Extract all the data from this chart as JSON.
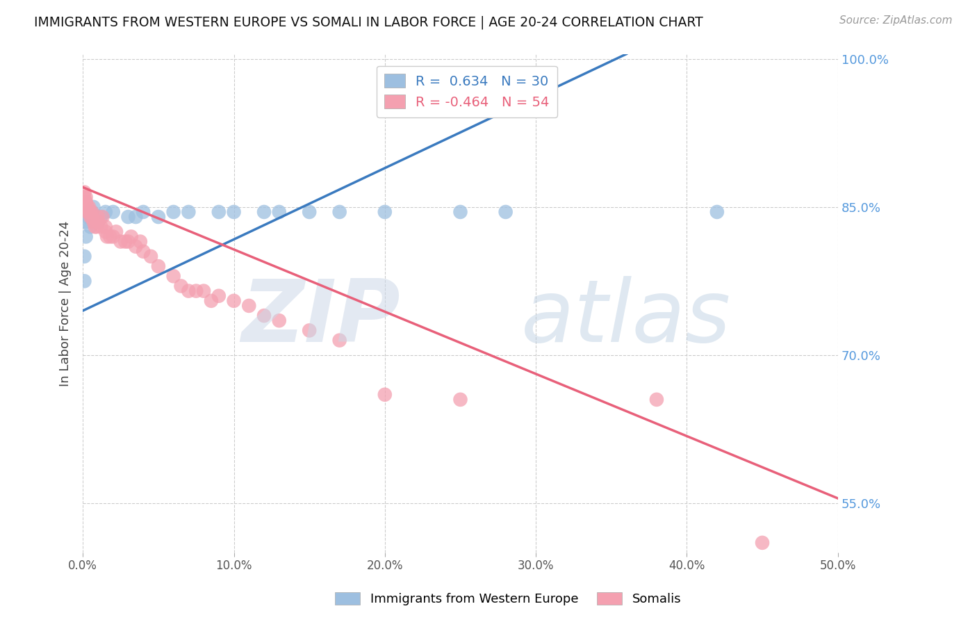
{
  "title": "IMMIGRANTS FROM WESTERN EUROPE VS SOMALI IN LABOR FORCE | AGE 20-24 CORRELATION CHART",
  "source": "Source: ZipAtlas.com",
  "ylabel": "In Labor Force | Age 20-24",
  "r_blue": 0.634,
  "n_blue": 30,
  "r_pink": -0.464,
  "n_pink": 54,
  "legend_blue": "Immigrants from Western Europe",
  "legend_pink": "Somalis",
  "xlim": [
    0.0,
    0.5
  ],
  "ylim": [
    0.5,
    1.005
  ],
  "yticks": [
    0.55,
    0.7,
    0.85,
    1.0
  ],
  "ytick_labels": [
    "55.0%",
    "70.0%",
    "85.0%",
    "100.0%"
  ],
  "xticks": [
    0.0,
    0.1,
    0.2,
    0.3,
    0.4,
    0.5
  ],
  "xtick_labels": [
    "0.0%",
    "10.0%",
    "20.0%",
    "30.0%",
    "40.0%",
    "50.0%"
  ],
  "blue_color": "#9dbfe0",
  "pink_color": "#f4a0b0",
  "blue_line_color": "#3a7abf",
  "pink_line_color": "#e8607a",
  "watermark_zip": "ZIP",
  "watermark_atlas": "atlas",
  "blue_x": [
    0.001,
    0.001,
    0.002,
    0.002,
    0.003,
    0.004,
    0.005,
    0.006,
    0.007,
    0.008,
    0.01,
    0.012,
    0.015,
    0.02,
    0.03,
    0.035,
    0.04,
    0.05,
    0.06,
    0.07,
    0.09,
    0.1,
    0.12,
    0.13,
    0.15,
    0.17,
    0.2,
    0.25,
    0.28,
    0.42
  ],
  "blue_y": [
    0.775,
    0.8,
    0.82,
    0.835,
    0.84,
    0.845,
    0.83,
    0.845,
    0.85,
    0.84,
    0.835,
    0.84,
    0.845,
    0.845,
    0.84,
    0.84,
    0.845,
    0.84,
    0.845,
    0.845,
    0.845,
    0.845,
    0.845,
    0.845,
    0.845,
    0.845,
    0.845,
    0.845,
    0.845,
    0.845
  ],
  "pink_x": [
    0.001,
    0.001,
    0.001,
    0.001,
    0.002,
    0.002,
    0.002,
    0.003,
    0.003,
    0.004,
    0.004,
    0.005,
    0.005,
    0.006,
    0.006,
    0.007,
    0.008,
    0.009,
    0.01,
    0.01,
    0.012,
    0.013,
    0.015,
    0.015,
    0.016,
    0.018,
    0.02,
    0.022,
    0.025,
    0.028,
    0.03,
    0.032,
    0.035,
    0.038,
    0.04,
    0.045,
    0.05,
    0.06,
    0.065,
    0.07,
    0.075,
    0.08,
    0.085,
    0.09,
    0.1,
    0.11,
    0.12,
    0.13,
    0.15,
    0.17,
    0.2,
    0.25,
    0.38,
    0.45
  ],
  "pink_y": [
    0.85,
    0.855,
    0.86,
    0.865,
    0.855,
    0.86,
    0.855,
    0.845,
    0.85,
    0.845,
    0.85,
    0.845,
    0.84,
    0.84,
    0.845,
    0.835,
    0.83,
    0.83,
    0.835,
    0.84,
    0.83,
    0.84,
    0.825,
    0.83,
    0.82,
    0.82,
    0.82,
    0.825,
    0.815,
    0.815,
    0.815,
    0.82,
    0.81,
    0.815,
    0.805,
    0.8,
    0.79,
    0.78,
    0.77,
    0.765,
    0.765,
    0.765,
    0.755,
    0.76,
    0.755,
    0.75,
    0.74,
    0.735,
    0.725,
    0.715,
    0.66,
    0.655,
    0.655,
    0.51
  ],
  "blue_line_x0": 0.0,
  "blue_line_y0": 0.745,
  "blue_line_x1": 0.36,
  "blue_line_y1": 1.005,
  "pink_line_x0": 0.0,
  "pink_line_y0": 0.87,
  "pink_line_x1": 0.5,
  "pink_line_y1": 0.555
}
